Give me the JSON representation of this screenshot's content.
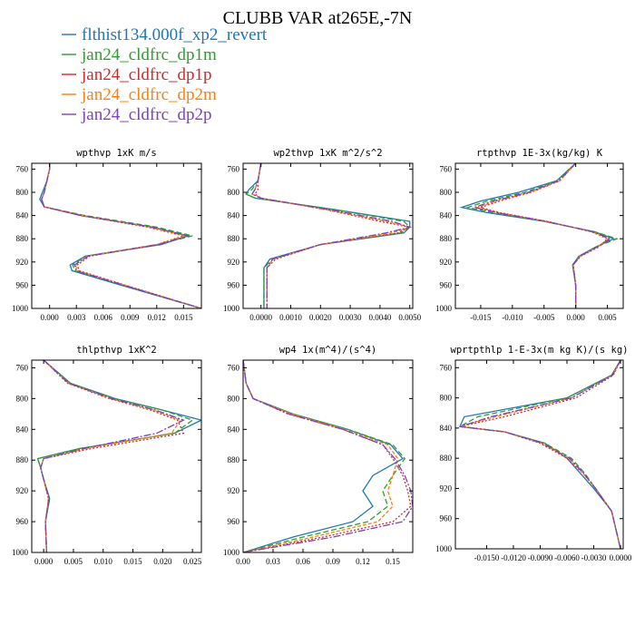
{
  "figure": {
    "title": "CLUBB VAR at265E,-7N"
  },
  "legend": [
    {
      "name": "flthist134.000f_xp2_revert",
      "color": "#1f77b4"
    },
    {
      "name": "jan24_cldfrc_dp1m",
      "color": "#2ca02c"
    },
    {
      "name": "jan24_cldfrc_dp1p",
      "color": "#d62728"
    },
    {
      "name": "jan24_cldfrc_dp2m",
      "color": "#ff7f0e"
    },
    {
      "name": "jan24_cldfrc_dp2p",
      "color": "#7f3fbf"
    }
  ],
  "chart_data": [
    {
      "type": "line",
      "title": "wpthvp  1xK m/s",
      "ylim": [
        1000,
        750
      ],
      "xlim": [
        -0.002,
        0.017
      ],
      "yticks": [
        "760",
        "800",
        "840",
        "880",
        "920",
        "960",
        "1000"
      ],
      "xticks": [
        "0.000",
        "0.003",
        "0.006",
        "0.009",
        "0.012",
        "0.015"
      ],
      "xtick_values": [
        0,
        0.003,
        0.006,
        0.009,
        0.012,
        0.015
      ],
      "y": [
        750,
        760,
        780,
        800,
        812,
        825,
        840,
        860,
        875,
        890,
        910,
        925,
        935,
        960,
        1000
      ],
      "series": [
        {
          "name": "flthist134.000f_xp2_revert",
          "values": [
            0.0,
            0.0,
            -0.0003,
            -0.0008,
            -0.0011,
            -0.0006,
            0.0035,
            0.0115,
            0.0155,
            0.0125,
            0.004,
            0.0023,
            0.0025,
            0.008,
            0.017
          ]
        },
        {
          "name": "jan24_cldfrc_dp1m",
          "values": [
            0.0,
            0.0,
            -0.0003,
            -0.0006,
            -0.0009,
            -0.0006,
            0.004,
            0.012,
            0.016,
            0.012,
            0.004,
            0.0026,
            0.0028,
            0.0083,
            0.017
          ]
        },
        {
          "name": "jan24_cldfrc_dp1p",
          "values": [
            0.0,
            0.0,
            -0.0003,
            -0.0006,
            -0.0009,
            -0.0006,
            0.0035,
            0.011,
            0.015,
            0.012,
            0.0045,
            0.0031,
            0.0033,
            0.0085,
            0.017
          ]
        },
        {
          "name": "jan24_cldfrc_dp2m",
          "values": [
            0.0,
            0.0,
            -0.0003,
            -0.0006,
            -0.0009,
            -0.0006,
            0.0038,
            0.0112,
            0.0152,
            0.012,
            0.0042,
            0.0029,
            0.0031,
            0.0084,
            0.017
          ]
        },
        {
          "name": "jan24_cldfrc_dp2p",
          "values": [
            0.0,
            0.0,
            -0.0003,
            -0.0006,
            -0.0009,
            -0.0006,
            0.0036,
            0.0115,
            0.0155,
            0.0122,
            0.0043,
            0.0028,
            0.003,
            0.0083,
            0.017
          ]
        }
      ]
    },
    {
      "type": "line",
      "title": "wp2thvp  1xK m^2/s^2",
      "ylim": [
        1000,
        750
      ],
      "xlim": [
        -0.0006,
        0.0051
      ],
      "yticks": [
        "760",
        "800",
        "840",
        "880",
        "920",
        "960",
        "1000"
      ],
      "xticks": [
        "0.0000",
        "0.0010",
        "0.0020",
        "0.0030",
        "0.0040",
        "0.0050"
      ],
      "xtick_values": [
        0,
        0.001,
        0.002,
        0.003,
        0.004,
        0.005
      ],
      "y": [
        750,
        780,
        795,
        803,
        810,
        830,
        850,
        860,
        870,
        890,
        915,
        930,
        960,
        1000
      ],
      "series": [
        {
          "name": "flthist134.000f_xp2_revert",
          "values": [
            0.0,
            -0.0001,
            -0.0004,
            -0.0005,
            -0.0002,
            0.0025,
            0.005,
            0.005,
            0.0048,
            0.002,
            0.0003,
            0.0001,
            0.0001,
            0.0001
          ]
        },
        {
          "name": "jan24_cldfrc_dp1m",
          "values": [
            0.0,
            -0.0001,
            -0.0003,
            -0.0005,
            -0.0002,
            0.0025,
            0.0048,
            0.005,
            0.0047,
            0.002,
            0.0004,
            0.0001,
            0.0001,
            0.0001
          ]
        },
        {
          "name": "jan24_cldfrc_dp1p",
          "values": [
            0.0,
            -0.0001,
            -0.0001,
            -0.0002,
            0.0,
            0.0022,
            0.004,
            0.005,
            0.0046,
            0.002,
            0.0005,
            0.0002,
            0.0002,
            0.0002
          ]
        },
        {
          "name": "jan24_cldfrc_dp2m",
          "values": [
            0.0,
            -0.0001,
            -0.0002,
            -0.0003,
            0.0,
            0.0022,
            0.0042,
            0.005,
            0.0044,
            0.002,
            0.0004,
            0.0002,
            0.0002,
            0.0002
          ]
        },
        {
          "name": "jan24_cldfrc_dp2p",
          "values": [
            0.0,
            -0.0001,
            -0.0002,
            -0.0003,
            0.0,
            0.0023,
            0.0044,
            0.005,
            0.0042,
            0.002,
            0.0004,
            0.0002,
            0.0002,
            0.0002
          ]
        }
      ]
    },
    {
      "type": "line",
      "title": "rtpthvp  1E-3x(kg/kg) K",
      "ylim": [
        1000,
        750
      ],
      "xlim": [
        -0.019,
        0.0075
      ],
      "yticks": [
        "760",
        "800",
        "840",
        "880",
        "920",
        "960",
        "1000"
      ],
      "xticks": [
        "-0.015",
        "-0.010",
        "-0.005",
        "0.000",
        "0.005"
      ],
      "xtick_values": [
        -0.015,
        -0.01,
        -0.005,
        0,
        0.005
      ],
      "y": [
        750,
        780,
        800,
        815,
        826,
        835,
        850,
        868,
        880,
        895,
        910,
        925,
        960,
        1000
      ],
      "series": [
        {
          "name": "flthist134.000f_xp2_revert",
          "values": [
            0.0,
            -0.003,
            -0.009,
            -0.015,
            -0.018,
            -0.014,
            -0.005,
            0.003,
            0.006,
            0.003,
            0.0005,
            -0.0005,
            0.0,
            0.0
          ]
        },
        {
          "name": "jan24_cldfrc_dp1m",
          "values": [
            0.0,
            -0.003,
            -0.008,
            -0.014,
            -0.017,
            -0.013,
            -0.005,
            0.003,
            0.0065,
            0.003,
            0.0006,
            -0.0005,
            0.0,
            0.0
          ]
        },
        {
          "name": "jan24_cldfrc_dp1p",
          "values": [
            0.0,
            -0.0025,
            -0.007,
            -0.012,
            -0.015,
            -0.012,
            -0.0045,
            0.0025,
            0.005,
            0.0035,
            0.0008,
            -0.0004,
            0.0,
            0.0
          ]
        },
        {
          "name": "jan24_cldfrc_dp2m",
          "values": [
            0.0,
            -0.0025,
            -0.0072,
            -0.0125,
            -0.0155,
            -0.0122,
            -0.0046,
            0.0026,
            0.0052,
            0.0033,
            0.0007,
            -0.0004,
            0.0,
            0.0
          ]
        },
        {
          "name": "jan24_cldfrc_dp2p",
          "values": [
            0.0,
            -0.0027,
            -0.0075,
            -0.013,
            -0.016,
            -0.0125,
            -0.0047,
            0.0027,
            0.0055,
            0.0032,
            0.0007,
            -0.0004,
            0.0,
            0.0
          ]
        }
      ]
    },
    {
      "type": "line",
      "title": "thlpthvp  1xK^2",
      "ylim": [
        1000,
        750
      ],
      "xlim": [
        -0.002,
        0.0265
      ],
      "yticks": [
        "760",
        "800",
        "840",
        "880",
        "920",
        "960",
        "1000"
      ],
      "xticks": [
        "0.000",
        "0.005",
        "0.010",
        "0.015",
        "0.020",
        "0.025"
      ],
      "xtick_values": [
        0,
        0.005,
        0.01,
        0.015,
        0.02,
        0.025
      ],
      "y": [
        750,
        780,
        800,
        815,
        828,
        845,
        865,
        878,
        890,
        905,
        930,
        960,
        1000
      ],
      "series": [
        {
          "name": "flthist134.000f_xp2_revert",
          "values": [
            0.0,
            0.0045,
            0.012,
            0.02,
            0.0265,
            0.022,
            0.006,
            -0.001,
            -0.0005,
            0.0,
            0.001,
            0.0003,
            0.0005
          ]
        },
        {
          "name": "jan24_cldfrc_dp1m",
          "values": [
            0.0,
            0.0045,
            0.012,
            0.02,
            0.025,
            0.022,
            0.006,
            -0.001,
            -0.0005,
            0.0,
            0.001,
            0.0003,
            0.0005
          ]
        },
        {
          "name": "jan24_cldfrc_dp1p",
          "values": [
            0.0,
            0.004,
            0.011,
            0.018,
            0.0225,
            0.0235,
            0.008,
            0.0,
            -0.0005,
            0.0,
            0.0008,
            0.0003,
            0.0005
          ]
        },
        {
          "name": "jan24_cldfrc_dp2m",
          "values": [
            0.0,
            0.0042,
            0.0112,
            0.0185,
            0.023,
            0.0215,
            0.007,
            0.0,
            -0.0005,
            0.0,
            0.0008,
            0.0003,
            0.0005
          ]
        },
        {
          "name": "jan24_cldfrc_dp2p",
          "values": [
            0.0,
            0.0042,
            0.0115,
            0.0188,
            0.0235,
            0.019,
            0.0068,
            0.0,
            -0.0005,
            0.0,
            0.0009,
            0.0003,
            0.0005
          ]
        }
      ]
    },
    {
      "type": "line",
      "title": "wp4  1x(m^4)/(s^4)",
      "ylim": [
        1000,
        750
      ],
      "xlim": [
        0,
        0.17
      ],
      "yticks": [
        "760",
        "800",
        "840",
        "880",
        "920",
        "960",
        "1000"
      ],
      "xticks": [
        "0.00",
        "0.03",
        "0.06",
        "0.09",
        "0.12",
        "0.15"
      ],
      "xtick_values": [
        0,
        0.03,
        0.06,
        0.09,
        0.12,
        0.15
      ],
      "y": [
        750,
        780,
        800,
        820,
        840,
        860,
        878,
        900,
        920,
        940,
        960,
        980,
        1000
      ],
      "series": [
        {
          "name": "flthist134.000f_xp2_revert",
          "values": [
            0.0,
            0.003,
            0.01,
            0.05,
            0.105,
            0.148,
            0.16,
            0.13,
            0.12,
            0.13,
            0.11,
            0.05,
            0.0
          ]
        },
        {
          "name": "jan24_cldfrc_dp1m",
          "values": [
            0.0,
            0.003,
            0.01,
            0.05,
            0.105,
            0.15,
            0.162,
            0.15,
            0.14,
            0.145,
            0.125,
            0.06,
            0.0
          ]
        },
        {
          "name": "jan24_cldfrc_dp1p",
          "values": [
            0.0,
            0.003,
            0.01,
            0.045,
            0.1,
            0.14,
            0.15,
            0.16,
            0.165,
            0.168,
            0.15,
            0.08,
            0.0
          ]
        },
        {
          "name": "jan24_cldfrc_dp2m",
          "values": [
            0.0,
            0.003,
            0.01,
            0.048,
            0.102,
            0.145,
            0.155,
            0.15,
            0.145,
            0.15,
            0.135,
            0.07,
            0.0
          ]
        },
        {
          "name": "jan24_cldfrc_dp2p",
          "values": [
            0.0,
            0.003,
            0.01,
            0.046,
            0.1,
            0.14,
            0.152,
            0.162,
            0.168,
            0.17,
            0.16,
            0.09,
            0.0
          ]
        }
      ]
    },
    {
      "type": "line",
      "title": "wprtpthlp  1-E-3x(m kg K)/(s kg)",
      "ylim": [
        1000,
        750
      ],
      "xlim": [
        -0.0185,
        0.0003
      ],
      "yticks": [
        "760",
        "800",
        "840",
        "880",
        "920",
        "960",
        "1000"
      ],
      "xticks": [
        "-0.0150",
        "-0.0120",
        "-0.0090",
        "-0.0060",
        "-0.0030",
        "0.0000"
      ],
      "xtick_values": [
        -0.015,
        -0.012,
        -0.009,
        -0.006,
        -0.003,
        0
      ],
      "y": [
        750,
        770,
        800,
        825,
        838,
        845,
        860,
        880,
        900,
        920,
        950,
        1000
      ],
      "series": [
        {
          "name": "flthist134.000f_xp2_revert",
          "values": [
            0.0,
            -0.001,
            -0.006,
            -0.0175,
            -0.018,
            -0.013,
            -0.0085,
            -0.006,
            -0.0045,
            -0.003,
            -0.001,
            0.0
          ]
        },
        {
          "name": "jan24_cldfrc_dp1m",
          "values": [
            0.0,
            -0.001,
            -0.006,
            -0.016,
            -0.018,
            -0.013,
            -0.0085,
            -0.0055,
            -0.004,
            -0.0028,
            -0.001,
            0.0
          ]
        },
        {
          "name": "jan24_cldfrc_dp1p",
          "values": [
            0.0,
            -0.0008,
            -0.005,
            -0.013,
            -0.018,
            -0.013,
            -0.009,
            -0.006,
            -0.0042,
            -0.0028,
            -0.001,
            0.0
          ]
        },
        {
          "name": "jan24_cldfrc_dp2m",
          "values": [
            0.0,
            -0.0009,
            -0.0055,
            -0.014,
            -0.018,
            -0.013,
            -0.0088,
            -0.0058,
            -0.0042,
            -0.0028,
            -0.001,
            0.0
          ]
        },
        {
          "name": "jan24_cldfrc_dp2p",
          "values": [
            0.0,
            -0.0009,
            -0.0055,
            -0.0145,
            -0.018,
            -0.013,
            -0.0088,
            -0.0057,
            -0.0041,
            -0.0028,
            -0.001,
            0.0
          ]
        }
      ]
    }
  ]
}
